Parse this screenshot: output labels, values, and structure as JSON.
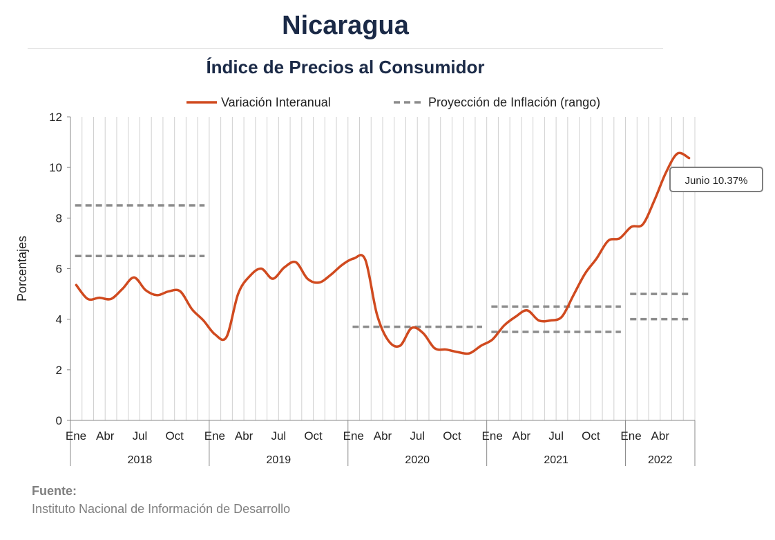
{
  "header": {
    "title": "Nicaragua",
    "subtitle": "Índice de Precios al Consumidor"
  },
  "source": {
    "label": "Fuente:",
    "text": "Instituto Nacional de Información de  Desarrollo"
  },
  "chart_data": {
    "type": "line",
    "ylabel": "Porcentajes",
    "ylim": [
      0,
      12
    ],
    "yticks": [
      0,
      2,
      4,
      6,
      8,
      10,
      12
    ],
    "grid": "vertical",
    "legend_position": "top",
    "month_ticks": [
      "Ene",
      "Abr",
      "Jul",
      "Oct"
    ],
    "years": [
      "2018",
      "2019",
      "2020",
      "2021",
      "2022"
    ],
    "month_labels": [
      "Ene",
      "Abr",
      "Jul",
      "Oct",
      "Ene",
      "Abr",
      "Jul",
      "Oct",
      "Ene",
      "Abr",
      "Jul",
      "Oct",
      "Ene",
      "Abr",
      "Jul",
      "Oct",
      "Ene",
      "Abr"
    ],
    "colors": {
      "series": "#d04a1f",
      "projection": "#8c8c8c"
    },
    "series": [
      {
        "name": "Variación Interanual",
        "x": [
          "2018-01",
          "2018-02",
          "2018-03",
          "2018-04",
          "2018-05",
          "2018-06",
          "2018-07",
          "2018-08",
          "2018-09",
          "2018-10",
          "2018-11",
          "2018-12",
          "2019-01",
          "2019-02",
          "2019-03",
          "2019-04",
          "2019-05",
          "2019-06",
          "2019-07",
          "2019-08",
          "2019-09",
          "2019-10",
          "2019-11",
          "2019-12",
          "2020-01",
          "2020-02",
          "2020-03",
          "2020-04",
          "2020-05",
          "2020-06",
          "2020-07",
          "2020-08",
          "2020-09",
          "2020-10",
          "2020-11",
          "2020-12",
          "2021-01",
          "2021-02",
          "2021-03",
          "2021-04",
          "2021-05",
          "2021-06",
          "2021-07",
          "2021-08",
          "2021-09",
          "2021-10",
          "2021-11",
          "2021-12",
          "2022-01",
          "2022-02",
          "2022-03",
          "2022-04",
          "2022-05",
          "2022-06"
        ],
        "values": [
          5.35,
          4.8,
          4.85,
          4.8,
          5.2,
          5.65,
          5.15,
          4.95,
          5.1,
          5.1,
          4.4,
          3.95,
          3.4,
          3.3,
          5.0,
          5.7,
          6.0,
          5.6,
          6.05,
          6.25,
          5.6,
          5.45,
          5.75,
          6.15,
          6.4,
          6.35,
          4.2,
          3.15,
          2.95,
          3.65,
          3.45,
          2.85,
          2.8,
          2.7,
          2.65,
          2.95,
          3.2,
          3.75,
          4.1,
          4.35,
          3.95,
          3.95,
          4.1,
          4.95,
          5.8,
          6.4,
          7.1,
          7.2,
          7.65,
          7.75,
          8.7,
          9.8,
          10.55,
          10.37
        ]
      },
      {
        "name": "Proyección de Inflación (rango)",
        "segments": [
          {
            "x": [
              "2018-01",
              "2018-12"
            ],
            "value": 8.5
          },
          {
            "x": [
              "2018-01",
              "2018-12"
            ],
            "value": 6.5
          },
          {
            "x": [
              "2020-01",
              "2020-12"
            ],
            "value": 3.7
          },
          {
            "x": [
              "2021-01",
              "2021-12"
            ],
            "value": 4.5
          },
          {
            "x": [
              "2021-01",
              "2021-12"
            ],
            "value": 3.5
          },
          {
            "x": [
              "2022-01",
              "2022-06"
            ],
            "value": 5.0
          },
          {
            "x": [
              "2022-01",
              "2022-06"
            ],
            "value": 4.0
          }
        ]
      }
    ],
    "annotation": {
      "text": "Junio 10.37%",
      "x": "2022-06",
      "value": 10.37
    }
  }
}
